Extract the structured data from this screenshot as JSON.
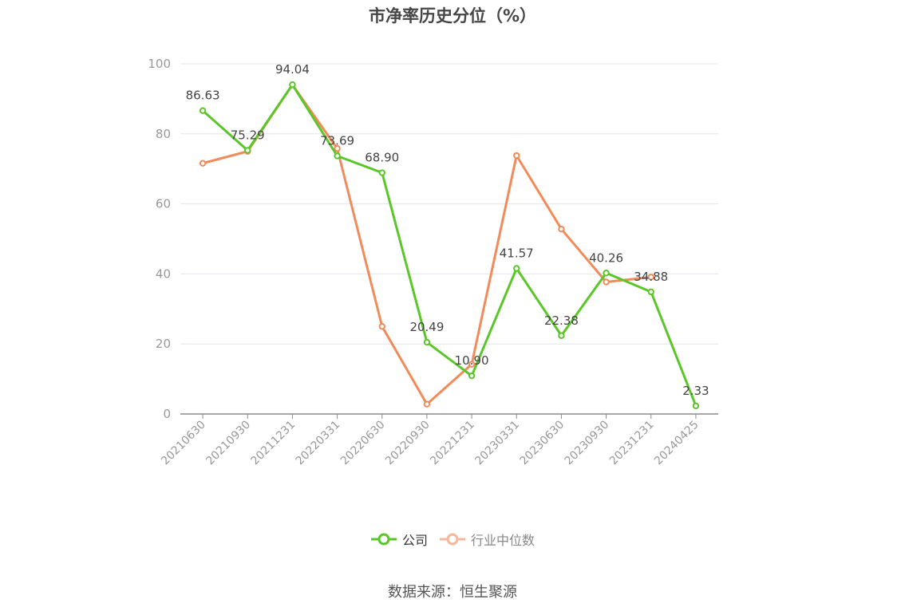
{
  "chart_data": {
    "type": "line",
    "title": "市净率历史分位（%）",
    "categories": [
      "20210630",
      "20210930",
      "20211231",
      "20220331",
      "20220630",
      "20220930",
      "20221231",
      "20230331",
      "20230630",
      "20230930",
      "20231231",
      "20240425"
    ],
    "ylim": [
      0,
      100
    ],
    "yticks": [
      0,
      20,
      40,
      60,
      80,
      100
    ],
    "grid": true,
    "legend_position": "bottom",
    "series": [
      {
        "name": "公司",
        "color": "#5ac629",
        "values": [
          86.63,
          75.29,
          94.04,
          73.69,
          68.9,
          20.49,
          10.9,
          41.57,
          22.38,
          40.26,
          34.88,
          2.33
        ],
        "labels": [
          "86.63",
          "75.29",
          "94.04",
          "73.69",
          "68.90",
          "20.49",
          "10.90",
          "41.57",
          "22.38",
          "40.26",
          "34.88",
          "2.33"
        ]
      },
      {
        "name": "行业中位数",
        "color": "#f28b5a",
        "legend_color": "#f7b79b",
        "values": [
          71.6,
          75.0,
          94.0,
          75.8,
          25.0,
          2.8,
          14.2,
          73.8,
          52.8,
          37.7,
          39.1,
          null
        ]
      }
    ]
  },
  "source_text": "数据来源：恒生聚源"
}
